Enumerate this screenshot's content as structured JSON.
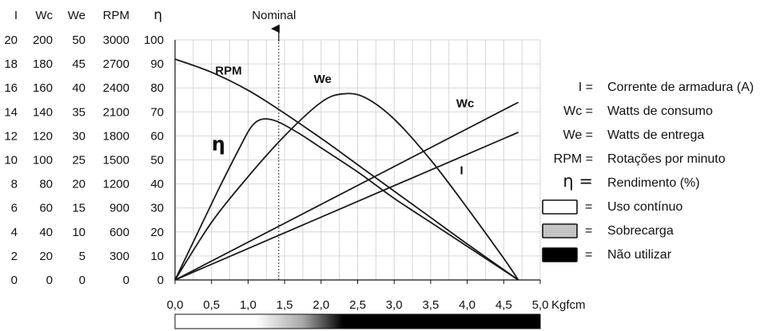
{
  "chart_data": {
    "type": "line",
    "x_unit": "Kgfcm",
    "xlim": [
      0,
      5
    ],
    "x_ticks": [
      "0,0",
      "0,5",
      "1,0",
      "1,5",
      "2,0",
      "2,5",
      "3,0",
      "3,5",
      "4,0",
      "4,5",
      "5,0"
    ],
    "ylim": [
      0,
      100
    ],
    "axes_headers": [
      "I",
      "Wc",
      "We",
      "RPM",
      "η"
    ],
    "axes_columns": [
      [
        "0",
        "2",
        "4",
        "6",
        "8",
        "10",
        "12",
        "14",
        "16",
        "18",
        "20"
      ],
      [
        "0",
        "20",
        "40",
        "60",
        "80",
        "100",
        "120",
        "140",
        "160",
        "180",
        "200"
      ],
      [
        "0",
        "5",
        "10",
        "15",
        "20",
        "25",
        "30",
        "35",
        "40",
        "45",
        "50"
      ],
      [
        "0",
        "300",
        "600",
        "900",
        "1200",
        "1500",
        "1800",
        "2100",
        "2400",
        "2700",
        "3000"
      ],
      [
        "0",
        "10",
        "20",
        "30",
        "40",
        "50",
        "60",
        "70",
        "80",
        "90",
        "100"
      ]
    ],
    "nominal": {
      "label": "Nominal",
      "x": 1.42
    },
    "series": [
      {
        "name": "RPM",
        "axis": "RPM",
        "label_at": [
          0.55,
          85.5
        ],
        "points": [
          [
            0,
            92
          ],
          [
            0.5,
            86.5
          ],
          [
            1.0,
            79
          ],
          [
            1.42,
            71
          ],
          [
            2.0,
            59
          ],
          [
            2.5,
            48
          ],
          [
            3.0,
            37
          ],
          [
            3.5,
            26
          ],
          [
            4.0,
            15
          ],
          [
            4.7,
            0
          ]
        ]
      },
      {
        "name": "We",
        "axis": "We",
        "label_at": [
          1.9,
          82
        ],
        "points": [
          [
            0,
            0
          ],
          [
            0.5,
            24
          ],
          [
            1.0,
            43
          ],
          [
            1.5,
            60
          ],
          [
            2.0,
            74
          ],
          [
            2.3,
            77.5
          ],
          [
            2.6,
            76
          ],
          [
            3.0,
            67
          ],
          [
            3.5,
            50
          ],
          [
            4.0,
            30
          ],
          [
            4.5,
            9
          ],
          [
            4.7,
            0
          ]
        ]
      },
      {
        "name": "Wc",
        "axis": "Wc",
        "label_at": [
          3.85,
          72
        ],
        "points": [
          [
            0,
            0
          ],
          [
            4.7,
            74
          ]
        ]
      },
      {
        "name": "I",
        "axis": "I",
        "label_at": [
          3.9,
          44
        ],
        "points": [
          [
            0,
            0
          ],
          [
            4.7,
            61.5
          ]
        ]
      },
      {
        "name": "η",
        "axis": "η",
        "label_at": [
          0.5,
          54
        ],
        "points": [
          [
            0,
            0
          ],
          [
            0.3,
            19
          ],
          [
            0.6,
            38
          ],
          [
            0.9,
            56
          ],
          [
            1.05,
            64
          ],
          [
            1.2,
            67
          ],
          [
            1.4,
            66
          ],
          [
            1.7,
            61
          ],
          [
            2.0,
            55
          ],
          [
            2.5,
            45
          ],
          [
            3.0,
            34
          ],
          [
            3.5,
            24
          ],
          [
            4.0,
            14
          ],
          [
            4.7,
            0
          ]
        ]
      }
    ],
    "usage_bar": [
      {
        "from": 0,
        "to": 1.45,
        "level": "Uso contínuo"
      },
      {
        "from": 1.45,
        "to": 2.3,
        "level": "Sobrecarga"
      },
      {
        "from": 2.3,
        "to": 5.0,
        "level": "Não utilizar"
      }
    ]
  },
  "legend": [
    {
      "symbol": "I =",
      "text": "Corrente de armadura (A)"
    },
    {
      "symbol": "Wc =",
      "text": "Watts de consumo"
    },
    {
      "symbol": "We =",
      "text": "Watts de entrega"
    },
    {
      "symbol": "RPM =",
      "text": "Rotações por minuto"
    },
    {
      "symbol": "η =",
      "text": "Rendimento (%)"
    }
  ],
  "swatches": [
    {
      "color": "#ffffff",
      "eq": "=",
      "text": "Uso contínuo"
    },
    {
      "color": "#c4c4c4",
      "eq": "=",
      "text": "Sobrecarga"
    },
    {
      "color": "#000000",
      "eq": "=",
      "text": "Não utilizar"
    }
  ]
}
